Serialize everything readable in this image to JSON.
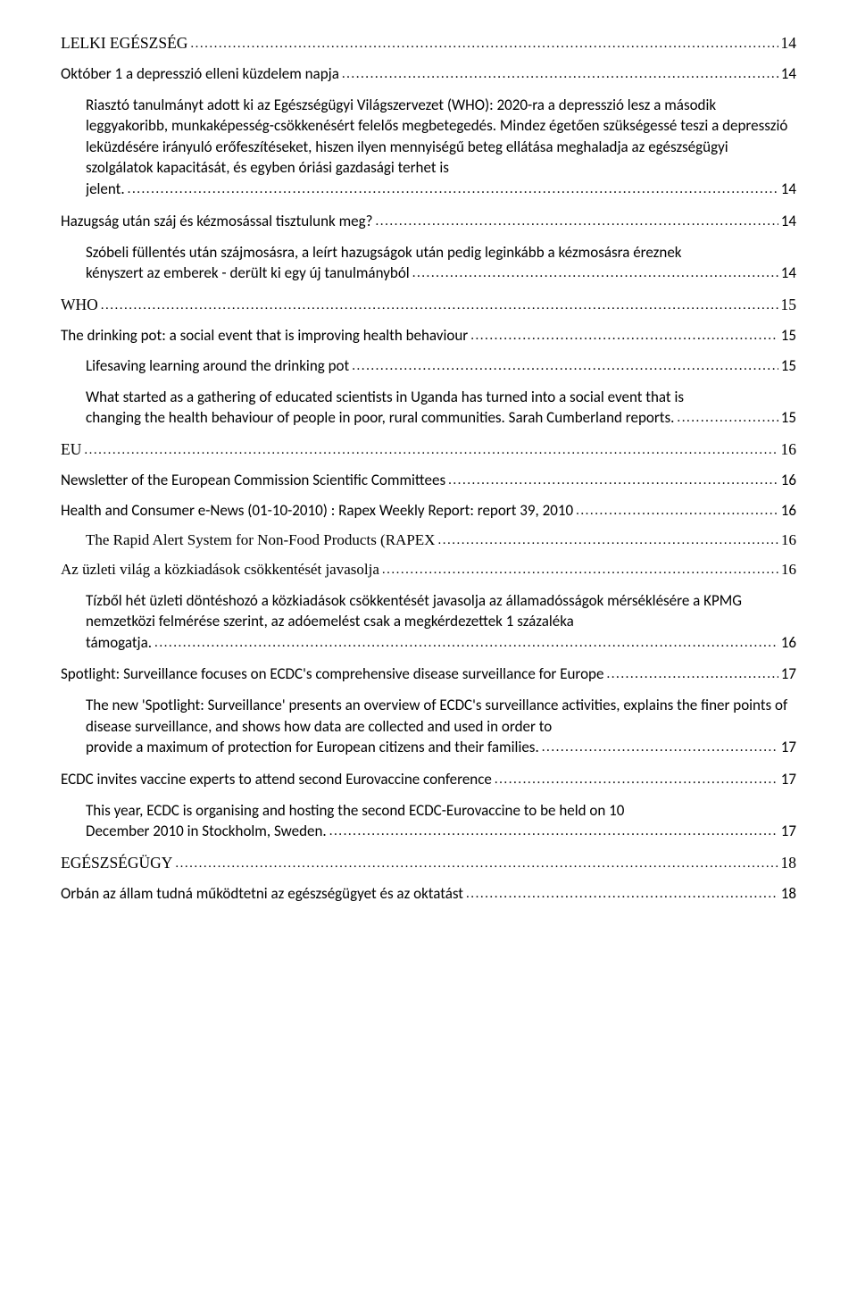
{
  "entries": [
    {
      "id": "e0",
      "level": "level0 serif",
      "text": "LELKI EGÉSZSÉG",
      "page": "14"
    },
    {
      "id": "e1",
      "level": "level1",
      "text": "Október 1   a depresszió elleni küzdelem napja",
      "page": "14"
    },
    {
      "id": "e2",
      "level": "para",
      "pre": "Riasztó tanulmányt adott ki az Egészségügyi Világszervezet (WHO): 2020-ra a depresszió lesz a második leggyakoribb, munkaképesség-csökkenésért felelős megbetegedés. Mindez égetően szükségessé teszi a depresszió leküzdésére irányuló erőfeszítéseket, hiszen ilyen mennyiségű beteg ellátása meghaladja az egészségügyi szolgálatok kapacitását, és egyben óriási gazdasági terhet is",
      "tail": "jelent.",
      "page": "14"
    },
    {
      "id": "e3",
      "level": "level1",
      "text": "Hazugság után száj és kézmosással tisztulunk meg?",
      "page": "14"
    },
    {
      "id": "e4",
      "level": "para",
      "pre": "Szóbeli füllentés után szájmosásra, a leírt hazugságok után pedig leginkább a kézmosásra éreznek",
      "tail": "kényszert az emberek - derült ki egy új tanulmányból",
      "page": "14"
    },
    {
      "id": "e5",
      "level": "level0 serif",
      "text": "WHO",
      "page": "15"
    },
    {
      "id": "e6",
      "level": "level1",
      "text": "The drinking pot: a social event that is improving health behaviour",
      "page": "15"
    },
    {
      "id": "e7",
      "level": "level2",
      "text": "Lifesaving learning around the drinking pot",
      "page": "15"
    },
    {
      "id": "e8",
      "level": "para",
      "pre": "What started as a gathering of educated scientists in Uganda has turned into a social event that is",
      "tail": "changing the health behaviour of people in poor, rural communities. Sarah Cumberland reports.",
      "page": "15"
    },
    {
      "id": "e9",
      "level": "level0 serif",
      "text": "EU",
      "page": "16"
    },
    {
      "id": "e10",
      "level": "level1",
      "text": "Newsletter of the European Commission Scientific Committees",
      "page": "16"
    },
    {
      "id": "e11",
      "level": "level1",
      "text": "Health and Consumer e-News (01-10-2010) : Rapex Weekly Report: report 39, 2010",
      "page": "16"
    },
    {
      "id": "e12",
      "level": "level2 serif",
      "text": "The Rapid Alert System for Non-Food Products (RAPEX",
      "page": "16"
    },
    {
      "id": "e13",
      "level": "level1 serif",
      "text": "Az üzleti világ a közkiadások csökkentését javasolja",
      "page": "16"
    },
    {
      "id": "e14",
      "level": "para",
      "pre": "Tízből hét üzleti döntéshozó a közkiadások csökkentését javasolja az államadósságok mérséklésére a KPMG nemzetközi felmérése szerint, az adóemelést csak a megkérdezettek 1 százaléka",
      "tail": "támogatja. ",
      "page": "16"
    },
    {
      "id": "e15",
      "level": "level1",
      "text": "Spotlight: Surveillance focuses on ECDC's comprehensive disease surveillance for Europe",
      "page": "17"
    },
    {
      "id": "e16",
      "level": "para",
      "pre": "The new 'Spotlight: Surveillance' presents an overview of ECDC's surveillance activities, explains the finer points of disease surveillance, and shows how data are collected and used in order to",
      "tail": "provide a maximum of protection for European citizens and their families. ",
      "page": "17"
    },
    {
      "id": "e17",
      "level": "level1",
      "text": "ECDC invites vaccine experts to attend second Eurovaccine conference",
      "page": "17"
    },
    {
      "id": "e18",
      "level": "para",
      "pre": "This year, ECDC is organising and hosting the second ECDC-Eurovaccine to be held  on 10",
      "tail": "December 2010 in Stockholm, Sweden.",
      "page": "17"
    },
    {
      "id": "e19",
      "level": "level0 serif",
      "text": "EGÉSZSÉGÜGY",
      "page": "18"
    },
    {
      "id": "e20",
      "level": "level1",
      "text": "Orbán    az állam tudná működtetni az egészségügyet és az oktatást",
      "page": "18"
    }
  ]
}
